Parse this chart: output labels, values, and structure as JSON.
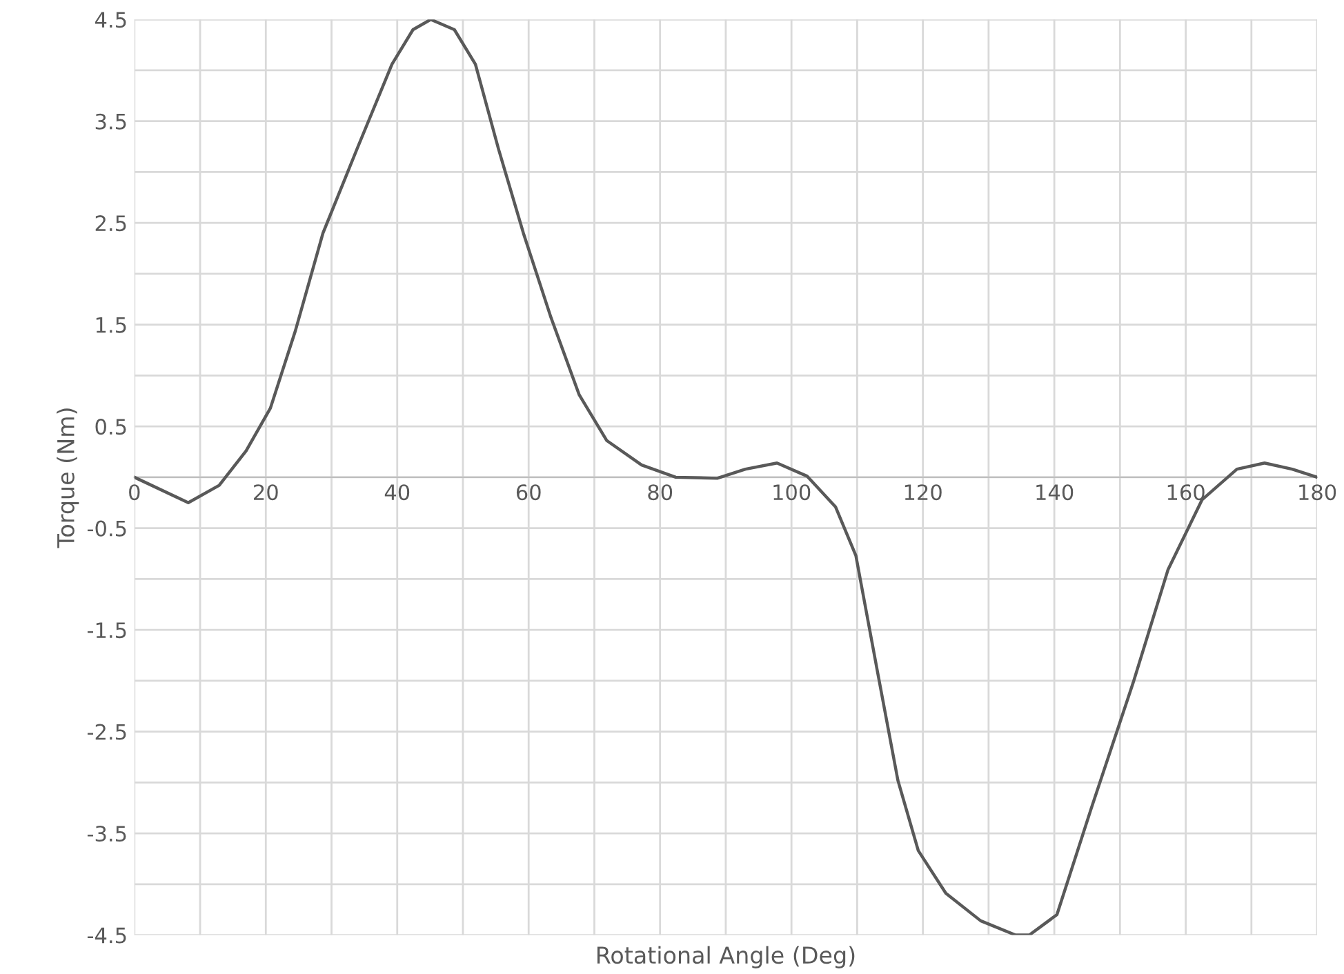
{
  "chart_data": {
    "type": "line",
    "xlabel": "Rotational Angle (Deg)",
    "ylabel": "Torque (Nm)",
    "xlim": [
      0,
      180
    ],
    "ylim": [
      -4.5,
      4.5
    ],
    "xticks": [
      0,
      {
        "value": 10,
        "label": null
      },
      20,
      {
        "value": 30,
        "label": null
      },
      40,
      {
        "value": 50,
        "label": null
      },
      60,
      {
        "value": 70,
        "label": null
      },
      80,
      {
        "value": 90,
        "label": null
      },
      100,
      {
        "value": 110,
        "label": null
      },
      120,
      {
        "value": 130,
        "label": null
      },
      140,
      {
        "value": 150,
        "label": null
      },
      160,
      {
        "value": 170,
        "label": null
      },
      180
    ],
    "yticks": [
      -4.5,
      {
        "value": -4,
        "label": null
      },
      -3.5,
      {
        "value": -3,
        "label": null
      },
      -2.5,
      {
        "value": -2,
        "label": null
      },
      -1.5,
      {
        "value": -1,
        "label": null
      },
      -0.5,
      {
        "value": 0,
        "label": null
      },
      0.5,
      {
        "value": 1,
        "label": null
      },
      1.5,
      {
        "value": 2,
        "label": null
      },
      2.5,
      {
        "value": 3,
        "label": null
      },
      3.5,
      {
        "value": 4,
        "label": null
      },
      4.5
    ],
    "grid": true,
    "marker": "none",
    "line_style": "solid",
    "series": [
      {
        "color": "#595959",
        "x": [
          0,
          8.2,
          12.9,
          17,
          20.7,
          24.5,
          28.7,
          33.9,
          39.2,
          42.4,
          45.1,
          48.7,
          51.9,
          55.4,
          59.2,
          63.4,
          67.7,
          71.9,
          77.2,
          82.4,
          88.7,
          93,
          97.8,
          102.4,
          106.7,
          109.8,
          113,
          116.2,
          119.3,
          123.5,
          128.8,
          134.1,
          136.2,
          140.4,
          145.6,
          152,
          157.3,
          162.5,
          167.8,
          172,
          176.2,
          180
        ],
        "values": [
          0,
          -0.25,
          -0.08,
          0.26,
          0.68,
          1.44,
          2.4,
          3.23,
          4.06,
          4.4,
          4.5,
          4.4,
          4.06,
          3.23,
          2.4,
          1.57,
          0.81,
          0.36,
          0.12,
          0,
          -0.01,
          0.08,
          0.14,
          0.01,
          -0.29,
          -0.77,
          -1.88,
          -2.98,
          -3.67,
          -4.09,
          -4.36,
          -4.5,
          -4.5,
          -4.3,
          -3.26,
          -2.02,
          -0.91,
          -0.22,
          0.08,
          0.14,
          0.08,
          0
        ]
      }
    ]
  }
}
